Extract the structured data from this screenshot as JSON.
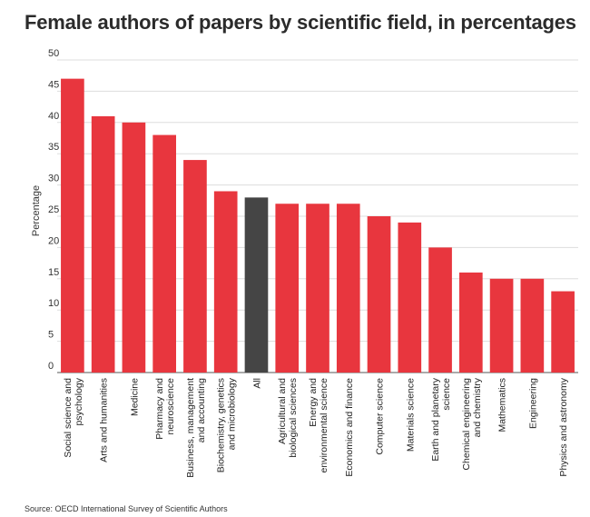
{
  "chart_data": {
    "type": "bar",
    "title": "Female authors of papers by scientific field, in percentages",
    "ylabel": "Percentage",
    "xlabel": "",
    "ylim": [
      0,
      50
    ],
    "yticks": [
      0,
      5,
      10,
      15,
      20,
      25,
      30,
      35,
      40,
      45,
      50
    ],
    "grid": true,
    "categories": [
      [
        "Social science and",
        "psychology"
      ],
      [
        "Arts and humanities"
      ],
      [
        "Medicine"
      ],
      [
        "Pharmacy and",
        "neuroscience"
      ],
      [
        "Business, management",
        "and accounting"
      ],
      [
        "Biochemistry, genetics",
        "and microbiology"
      ],
      [
        "All"
      ],
      [
        "Agricultural and",
        "biological sciences"
      ],
      [
        "Energy and",
        "environmental science"
      ],
      [
        "Economics and finance"
      ],
      [
        "Computer science"
      ],
      [
        "Materials science"
      ],
      [
        "Earth and planetary",
        "science"
      ],
      [
        "Chemical engineering",
        "and chemistry"
      ],
      [
        "Mathematics"
      ],
      [
        "Engineering"
      ],
      [
        "Physics and astronomy"
      ]
    ],
    "values": [
      47,
      41,
      40,
      38,
      34,
      29,
      28,
      27,
      27,
      27,
      25,
      24,
      20,
      16,
      15,
      15,
      13
    ],
    "highlight_index": 6,
    "colors": {
      "bar": "#e8363e",
      "highlight": "#454545",
      "grid": "#dddddd"
    }
  },
  "source": "Source: OECD International Survey of Scientific Authors"
}
